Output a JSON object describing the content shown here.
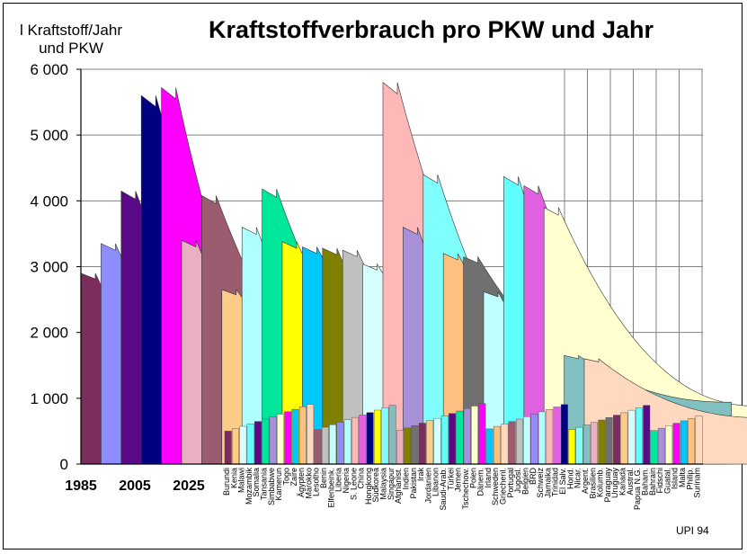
{
  "chart_data": {
    "type": "area",
    "title": "Kraftstoffverbrauch pro PKW und Jahr",
    "ylabel_lines": [
      "l Kraftstoff/Jahr",
      "und PKW"
    ],
    "ylim": [
      0,
      6000
    ],
    "yticks": [
      0,
      1000,
      2000,
      3000,
      4000,
      5000,
      6000
    ],
    "ytick_labels": [
      "0",
      "1 000",
      "2 000",
      "3 000",
      "4 000",
      "5 000",
      "6 000"
    ],
    "xtick_labels": [
      "1985",
      "2005",
      "2025"
    ],
    "grid": true,
    "credit": "UPI 94",
    "start_values": [
      2900,
      3350,
      4150,
      5600,
      5720,
      3400,
      4080,
      2650,
      3600,
      4180,
      3380,
      3300,
      3280,
      3250,
      3040,
      5800,
      3600,
      4400,
      3200,
      3150,
      2620,
      4370,
      4230,
      3900,
      1650,
      1600
    ],
    "series_colors": [
      "#7b2d5d",
      "#8d8dff",
      "#5a0a86",
      "#000080",
      "#ff00ff",
      "#e8b0c0",
      "#9c5c70",
      "#ffcc88",
      "#b0ffff",
      "#00e69a",
      "#ffff00",
      "#00c8ff",
      "#808000",
      "#c0c0c0",
      "#d8ffff",
      "#ffb8b8",
      "#a890d8",
      "#80ffff",
      "#ffc080",
      "#707070",
      "#c0ffff",
      "#60ffff",
      "#e060e0",
      "#ffffd0",
      "#80c0c0",
      "#ffd8c0"
    ],
    "countries": [
      "Burundi",
      "Kenia",
      "Malawi",
      "Mozambik",
      "Somalia",
      "Tansania",
      "Simbabwe",
      "Kamerun",
      "Togo",
      "Zaire",
      "Ägypten",
      "Marokko",
      "Lesotho",
      "Benin",
      "Elfenbeink.",
      "Liberia",
      "Nigeria",
      "S. Leone",
      "China",
      "Hongkong",
      "Südkorea",
      "Malaysia",
      "Singapur",
      "Afghanist.",
      "Indien",
      "Pakistan",
      "Irak",
      "Jordanien",
      "Libanon",
      "Saudi-Arab.",
      "Türkei",
      "Jemen",
      "Tschechow.",
      "Polen",
      "Dänem.",
      "Irland",
      "Schweden",
      "Griechenl.",
      "Portugal",
      "Jugosl.",
      "Belgien",
      "BRD",
      "Schweiz",
      "Jamaika",
      "Trinidad",
      "El Salv.",
      "Hond.",
      "Nicar.",
      "Argent.",
      "Brasilien",
      "Kolumb.",
      "Paraguay",
      "Uruguay",
      "Kanada",
      "Austral.",
      "Papua N.G.",
      "Baham.",
      "Bahrain",
      "Fidschi",
      "Guatal.",
      "Island",
      "Malta",
      "Philip.",
      "Surinam"
    ]
  }
}
